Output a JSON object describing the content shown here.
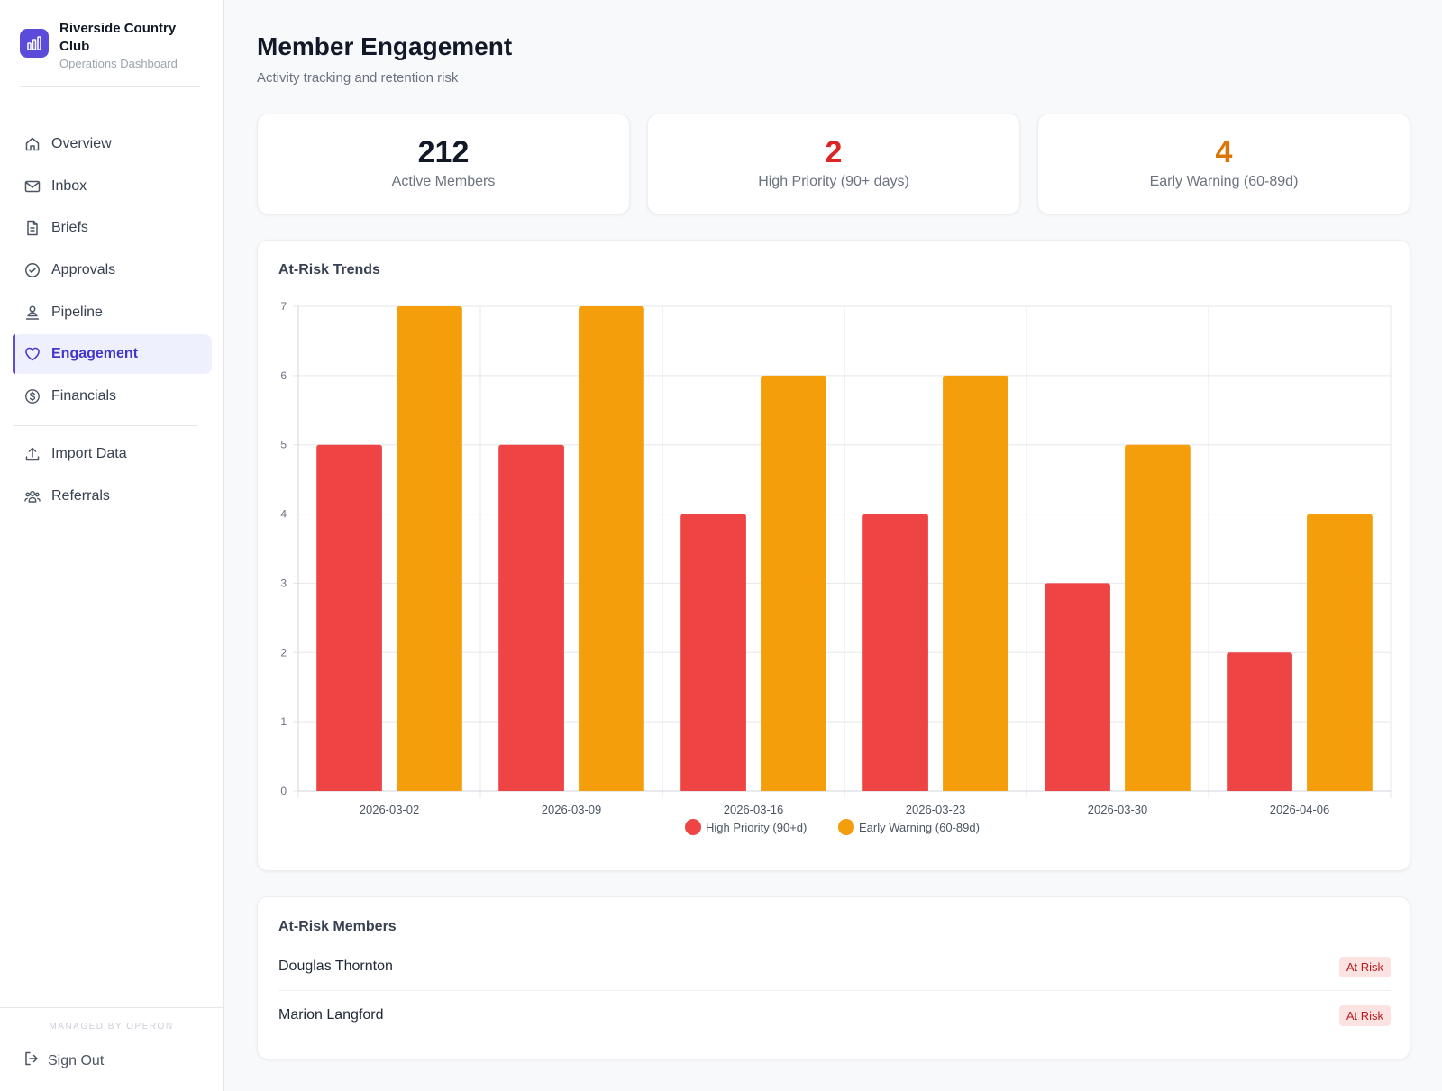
{
  "brand": {
    "name": "Riverside Country Club",
    "subtitle": "Operations Dashboard",
    "logo_icon": "bar-chart-icon",
    "accent": "#5b4bdb"
  },
  "nav": {
    "items": [
      {
        "label": "Overview",
        "icon": "home-icon"
      },
      {
        "label": "Inbox",
        "icon": "mail-icon"
      },
      {
        "label": "Briefs",
        "icon": "document-icon"
      },
      {
        "label": "Approvals",
        "icon": "check-circle-icon"
      },
      {
        "label": "Pipeline",
        "icon": "pipeline-icon"
      },
      {
        "label": "Engagement",
        "icon": "heart-icon",
        "active": true
      },
      {
        "label": "Financials",
        "icon": "dollar-circle-icon"
      }
    ],
    "secondary": [
      {
        "label": "Import Data",
        "icon": "upload-icon"
      },
      {
        "label": "Referrals",
        "icon": "users-icon"
      }
    ],
    "footer_text": "MANAGED BY OPERON",
    "signout_label": "Sign Out"
  },
  "header": {
    "title": "Member Engagement",
    "subtitle": "Activity tracking and retention risk"
  },
  "stats": [
    {
      "value": "212",
      "label": "Active Members",
      "color": "#111827"
    },
    {
      "value": "2",
      "label": "High Priority (90+ days)",
      "color": "#dc2626"
    },
    {
      "value": "4",
      "label": "Early Warning (60-89d)",
      "color": "#d97706"
    }
  ],
  "chart_data": {
    "type": "bar",
    "title": "At-Risk Trends",
    "categories": [
      "2026-03-02",
      "2026-03-09",
      "2026-03-16",
      "2026-03-23",
      "2026-03-30",
      "2026-04-06"
    ],
    "series": [
      {
        "name": "High Priority (90+d)",
        "values": [
          5,
          5,
          4,
          4,
          3,
          2
        ],
        "color": "#ef4444"
      },
      {
        "name": "Early Warning (60-89d)",
        "values": [
          7,
          7,
          6,
          6,
          5,
          4
        ],
        "color": "#f59e0b"
      }
    ],
    "ylim": [
      0,
      7
    ],
    "yticks": [
      0,
      1,
      2,
      3,
      4,
      5,
      6,
      7
    ],
    "grid": true,
    "legend": "bottom"
  },
  "at_risk": {
    "title": "At-Risk Members",
    "members": [
      {
        "name": "Douglas Thornton",
        "status": "At Risk"
      },
      {
        "name": "Marion Langford",
        "status": "At Risk"
      }
    ]
  }
}
